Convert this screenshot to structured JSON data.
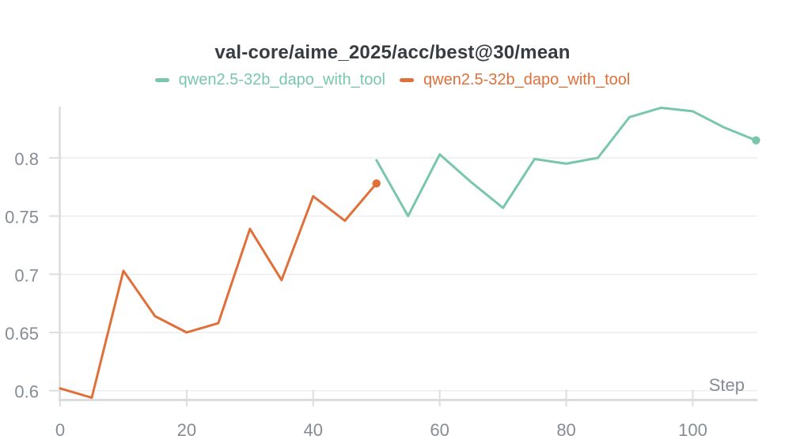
{
  "title": "val-core/aime_2025/acc/best@30/mean",
  "legend": [
    {
      "label": "qwen2.5-32b_dapo_with_tool",
      "color": "#79c6af"
    },
    {
      "label": "qwen2.5-32b_dapo_with_tool",
      "color": "#e0703a"
    }
  ],
  "colors": {
    "background": "#ffffff",
    "grid": "#ececec",
    "axis": "#dcdcdc",
    "tick": "#dedede",
    "tick_label": "#868c96",
    "title": "#373c42",
    "teal": "#79c6af",
    "orange": "#e0703a"
  },
  "chart_data": {
    "type": "line",
    "title": "val-core/aime_2025/acc/best@30/mean",
    "xlabel": "Step",
    "ylabel": "",
    "x_ticks": [
      0,
      20,
      40,
      60,
      80,
      100
    ],
    "y_ticks": [
      0.6,
      0.65,
      0.7,
      0.75,
      0.8
    ],
    "xlim": [
      0,
      110.2
    ],
    "ylim": [
      0.592,
      0.844
    ],
    "grid": "horizontal-only",
    "legend_position": "top-center",
    "series": [
      {
        "name": "qwen2.5-32b_dapo_with_tool",
        "color": "#e0703a",
        "endpoint_dot": true,
        "x": [
          0,
          5,
          10,
          15,
          20,
          25,
          30,
          35,
          40,
          45,
          50
        ],
        "y": [
          0.602,
          0.594,
          0.703,
          0.664,
          0.65,
          0.658,
          0.739,
          0.695,
          0.767,
          0.746,
          0.778
        ]
      },
      {
        "name": "qwen2.5-32b_dapo_with_tool",
        "color": "#79c6af",
        "endpoint_dot": true,
        "x": [
          50,
          55,
          60,
          65,
          70,
          75,
          80,
          85,
          90,
          95,
          100,
          105,
          110
        ],
        "y": [
          0.798,
          0.75,
          0.803,
          0.779,
          0.757,
          0.799,
          0.795,
          0.8,
          0.835,
          0.843,
          0.84,
          0.826,
          0.815
        ]
      }
    ]
  }
}
